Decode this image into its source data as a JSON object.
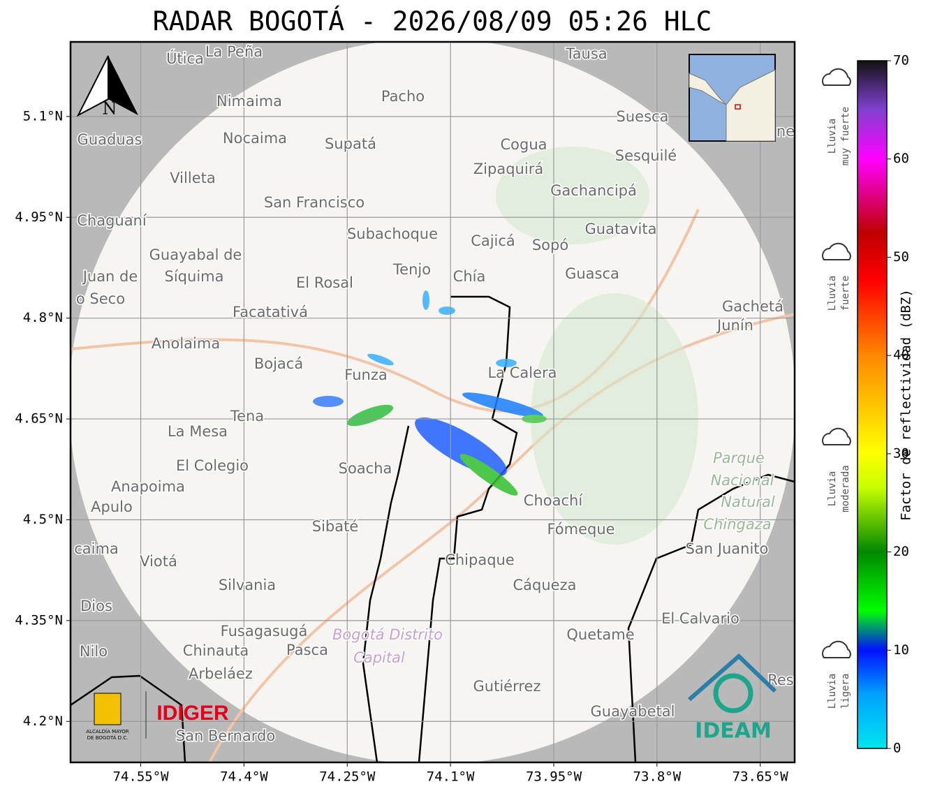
{
  "title": "RADAR BOGOTÁ - 2026/08/09 05:26 HLC",
  "map": {
    "xlim": [
      -74.652,
      -73.6
    ],
    "ylim": [
      4.139,
      5.211
    ],
    "xticks": [
      {
        "value": -74.55,
        "label": "74.55°W"
      },
      {
        "value": -74.4,
        "label": "74.4°W"
      },
      {
        "value": -74.25,
        "label": "74.25°W"
      },
      {
        "value": -74.1,
        "label": "74.1°W"
      },
      {
        "value": -73.95,
        "label": "73.95°W"
      },
      {
        "value": -73.8,
        "label": "73.8°W"
      },
      {
        "value": -73.65,
        "label": "73.65°W"
      }
    ],
    "yticks": [
      {
        "value": 4.2,
        "label": "4.2°N"
      },
      {
        "value": 4.35,
        "label": "4.35°N"
      },
      {
        "value": 4.5,
        "label": "4.5°N"
      },
      {
        "value": 4.65,
        "label": "4.65°N"
      },
      {
        "value": 4.8,
        "label": "4.8°N"
      },
      {
        "value": 4.95,
        "label": "4.95°N"
      },
      {
        "value": 5.1,
        "label": "5.1°N"
      }
    ],
    "north_label": "N",
    "places": [
      "Útica",
      "La Peña",
      "Tausa",
      "Pacho",
      "Nimaima",
      "Suesca",
      "Guaduas",
      "Nocaima",
      "Supatá",
      "Cogua",
      "Zipaquirá",
      "Sesquilé",
      "Villeta",
      "Gachancipá",
      "San Francisco",
      "Chaguaní",
      "Guatavita",
      "Subachoque",
      "Cajicá",
      "Sopó",
      "Guayabal de",
      "Síquima",
      "Juan de",
      "o Seco",
      "Tenjo",
      "Chía",
      "El Rosal",
      "Guasca",
      "Gachetá",
      "Junín",
      "Facatativá",
      "Anolaima",
      "Bojacá",
      "Funza",
      "La Calera",
      "Tena",
      "La Mesa",
      "El Colegio",
      "Soacha",
      "Parque",
      "Nacional",
      "Natural",
      "Chingaza",
      "Anapoima",
      "Apulo",
      "Choachí",
      "Sibaté",
      "Fómeque",
      "San Juanito",
      "caima",
      "Viotá",
      "Chipaque",
      "Silvania",
      "Cáqueza",
      "Dios",
      "El Calvario",
      "Fusagasugá",
      "Bogotá Distrito",
      "Capital",
      "Quetame",
      "Nilo",
      "Chinauta",
      "Pasca",
      "Arbeláez",
      "Res",
      "Gutiérrez",
      "Guayabetal",
      "San Bernardo",
      "ne"
    ]
  },
  "logos": {
    "alcaldia": [
      "ALCALDÍA MAYOR",
      "DE BOGOTÁ D.C."
    ],
    "idiger": "IDIGER",
    "ideam": "IDEAM"
  },
  "colorbar": {
    "label": "Factor de reflectividad (dBZ)",
    "lim": [
      0,
      70
    ],
    "ticks": [
      0,
      10,
      20,
      30,
      40,
      50,
      60,
      70
    ],
    "categories": [
      [
        "Lluvia",
        "muy fuerte"
      ],
      [
        "Lluvia",
        "fuerte"
      ],
      [
        "Lluvia",
        "moderada"
      ],
      [
        "Lluvia",
        "ligera"
      ]
    ]
  }
}
